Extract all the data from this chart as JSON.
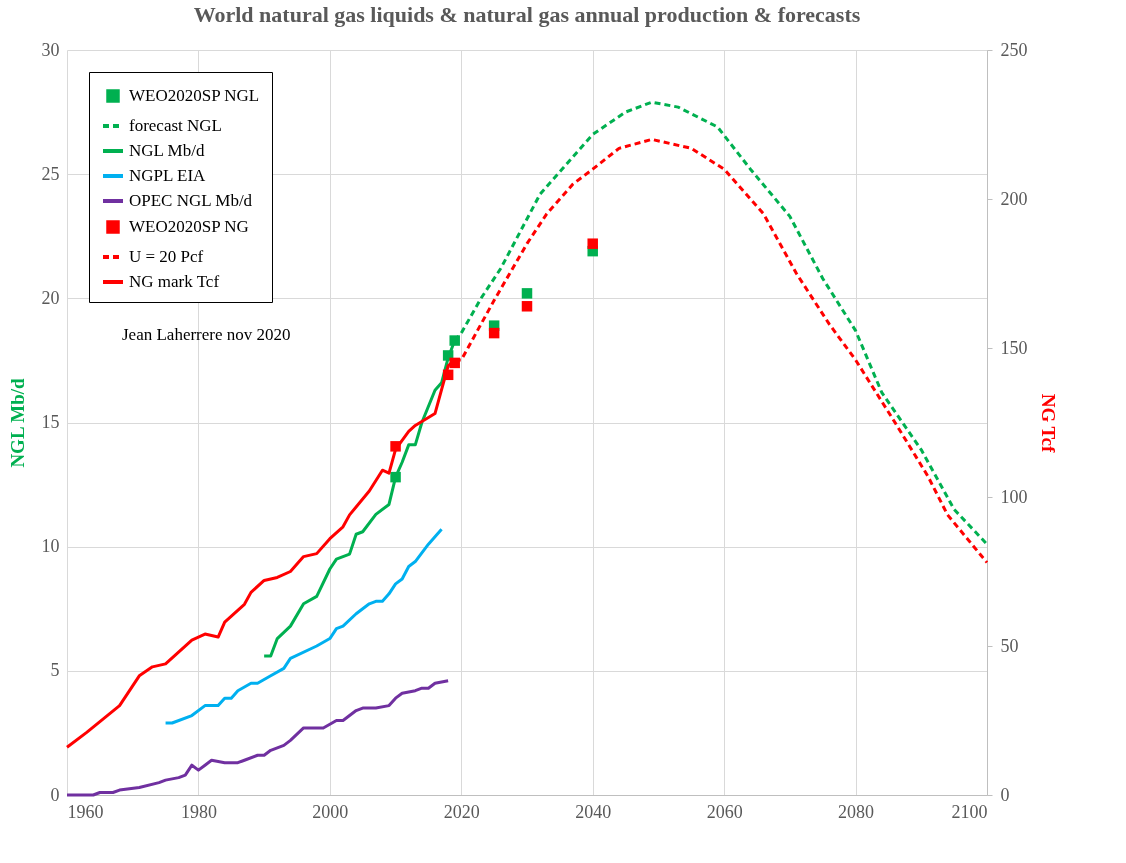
{
  "chart_data": {
    "type": "line",
    "title": "World natural gas liquids & natural gas annual production & forecasts",
    "ylabel": "NGL Mb/d",
    "y2label": "NG Tcf",
    "xlim": [
      1960,
      2100
    ],
    "xticks": [
      1960,
      1980,
      2000,
      2020,
      2040,
      2060,
      2080,
      2100
    ],
    "ylim": [
      0,
      30
    ],
    "yticks": [
      0,
      5,
      10,
      15,
      20,
      25,
      30
    ],
    "y2lim": [
      0,
      250
    ],
    "y2ticks": [
      0,
      50,
      100,
      150,
      200,
      250
    ],
    "grid": true,
    "legend": "top left",
    "annotations": [
      "Jean Laherrere nov 2020"
    ],
    "series": [
      {
        "name": "WEO2020SP NGL",
        "type": "scatter",
        "marker": "square",
        "color": "#00b050",
        "x": [
          2010,
          2018,
          2019,
          2025,
          2030,
          2040
        ],
        "values": [
          12.8,
          17.7,
          18.3,
          18.9,
          20.2,
          21.9
        ]
      },
      {
        "name": "forecast NGL",
        "line_style": "dashed",
        "color": "#00b050",
        "x": [
          2019,
          2020,
          2023,
          2026,
          2029,
          2032,
          2036,
          2040,
          2045,
          2049,
          2053,
          2059,
          2064,
          2070,
          2075,
          2080,
          2084,
          2090,
          2095,
          2100
        ],
        "values": [
          18.3,
          18.6,
          20.0,
          21.2,
          22.7,
          24.2,
          25.4,
          26.6,
          27.5,
          27.9,
          27.7,
          26.9,
          25.2,
          23.3,
          20.8,
          18.7,
          16.2,
          13.9,
          11.5,
          10.1
        ]
      },
      {
        "name": "NGL Mb/d",
        "color": "#00b050",
        "x": [
          1990,
          1991,
          1992,
          1994,
          1996,
          1998,
          2000,
          2001,
          2003,
          2004,
          2005,
          2007,
          2009,
          2010,
          2011,
          2012,
          2013,
          2014,
          2016,
          2017,
          2018,
          2019
        ],
        "values": [
          5.6,
          5.6,
          6.3,
          6.8,
          7.7,
          8.0,
          9.1,
          9.5,
          9.7,
          10.5,
          10.6,
          11.3,
          11.7,
          12.8,
          13.4,
          14.1,
          14.1,
          15.0,
          16.3,
          16.6,
          17.6,
          18.3
        ]
      },
      {
        "name": "NGPL  EIA",
        "color": "#00b0f0",
        "x": [
          1975,
          1976,
          1979,
          1981,
          1983,
          1984,
          1985,
          1986,
          1988,
          1989,
          1991,
          1993,
          1994,
          1998,
          2000,
          2001,
          2002,
          2004,
          2006,
          2007,
          2008,
          2009,
          2010,
          2011,
          2012,
          2013,
          2015,
          2016,
          2017
        ],
        "values": [
          2.9,
          2.9,
          3.2,
          3.6,
          3.6,
          3.9,
          3.9,
          4.2,
          4.5,
          4.5,
          4.8,
          5.1,
          5.5,
          6.0,
          6.3,
          6.7,
          6.8,
          7.3,
          7.7,
          7.8,
          7.8,
          8.1,
          8.5,
          8.7,
          9.2,
          9.4,
          10.1,
          10.4,
          10.7
        ]
      },
      {
        "name": "OPEC NGL Mb/d",
        "color": "#7030a0",
        "x": [
          1960,
          1964,
          1965,
          1967,
          1968,
          1971,
          1974,
          1975,
          1977,
          1978,
          1979,
          1980,
          1981,
          1982,
          1984,
          1986,
          1987,
          1989,
          1990,
          1991,
          1993,
          1994,
          1996,
          1999,
          2001,
          2002,
          2004,
          2005,
          2007,
          2009,
          2010,
          2011,
          2013,
          2014,
          2015,
          2016,
          2018
        ],
        "values": [
          0,
          0,
          0.1,
          0.1,
          0.2,
          0.3,
          0.5,
          0.6,
          0.7,
          0.8,
          1.2,
          1.0,
          1.2,
          1.4,
          1.3,
          1.3,
          1.4,
          1.6,
          1.6,
          1.8,
          2.0,
          2.2,
          2.7,
          2.7,
          3.0,
          3.0,
          3.4,
          3.5,
          3.5,
          3.6,
          3.9,
          4.1,
          4.2,
          4.3,
          4.3,
          4.5,
          4.6
        ]
      },
      {
        "name": "WEO2020SP NG",
        "type": "scatter",
        "marker": "square",
        "axis": "y2",
        "color": "#ff0000",
        "x": [
          2010,
          2018,
          2019,
          2025,
          2030,
          2040
        ],
        "values": [
          117,
          141,
          145,
          155,
          164,
          185
        ]
      },
      {
        "name": "U = 20 Pcf",
        "line_style": "dashed",
        "axis": "y2",
        "color": "#ff0000",
        "x": [
          2019,
          2020,
          2025,
          2030,
          2033,
          2037,
          2040,
          2044,
          2049,
          2055,
          2060,
          2066,
          2071,
          2076,
          2080,
          2086,
          2091,
          2094,
          2100
        ],
        "values": [
          146,
          146,
          166,
          185,
          195,
          205,
          210,
          217,
          220,
          217,
          210,
          195,
          175,
          158,
          146,
          125,
          107,
          94,
          78
        ]
      },
      {
        "name": "NG mark Tcf",
        "axis": "y2",
        "color": "#ff0000",
        "x": [
          1960,
          1963,
          1968,
          1971,
          1973,
          1975,
          1979,
          1981,
          1983,
          1984,
          1987,
          1988,
          1990,
          1992,
          1994,
          1996,
          1998,
          2000,
          2002,
          2003,
          2006,
          2008,
          2009,
          2010,
          2012,
          2013,
          2016,
          2017,
          2018,
          2019
        ],
        "values": [
          16,
          21,
          30,
          40,
          43,
          44,
          52,
          54,
          53,
          58,
          64,
          68,
          72,
          73,
          75,
          80,
          81,
          86,
          90,
          94,
          102,
          109,
          108,
          116,
          122,
          124,
          128,
          136,
          144,
          146
        ]
      }
    ]
  }
}
